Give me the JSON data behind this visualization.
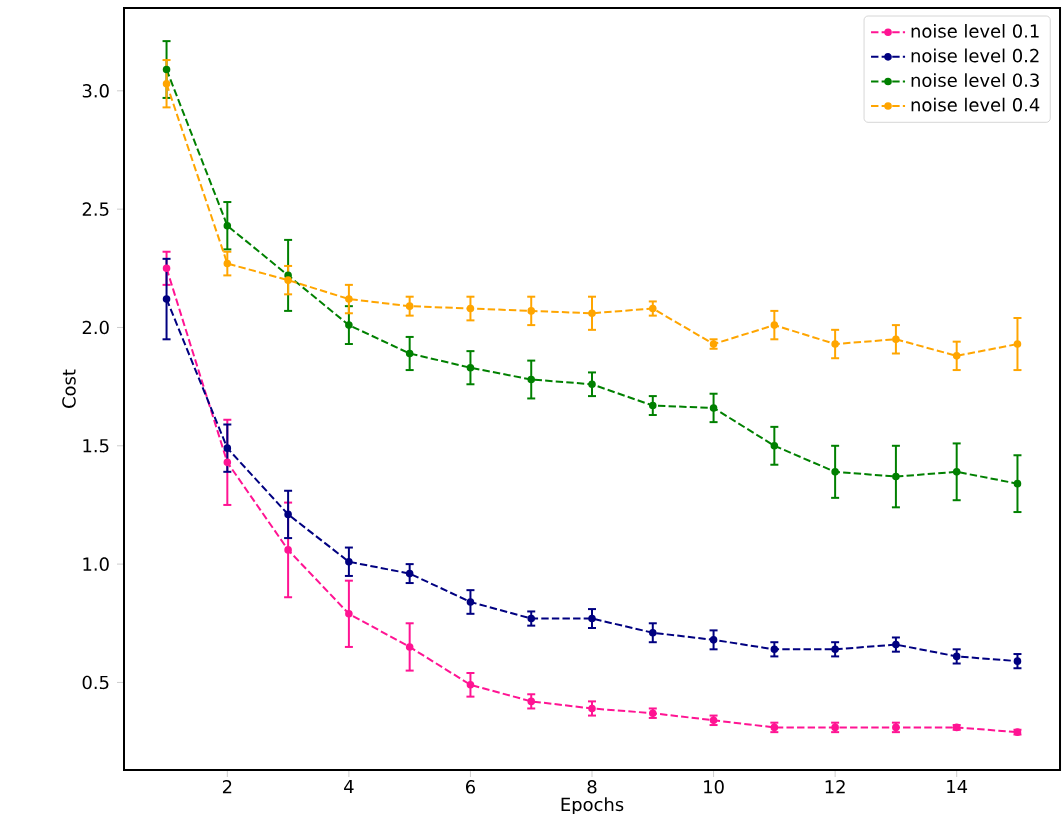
{
  "chart_data": {
    "type": "line",
    "xlabel": "Epochs",
    "ylabel": "Cost",
    "x": [
      1,
      2,
      3,
      4,
      5,
      6,
      7,
      8,
      9,
      10,
      11,
      12,
      13,
      14,
      15
    ],
    "xlim": [
      0.3,
      15.7
    ],
    "ylim": [
      0.13,
      3.35
    ],
    "xticks": [
      2,
      4,
      6,
      8,
      10,
      12,
      14
    ],
    "yticks": [
      {
        "value": 0.5,
        "label": "0.5"
      },
      {
        "value": 1.0,
        "label": "1.0"
      },
      {
        "value": 1.5,
        "label": "1.5"
      },
      {
        "value": 2.0,
        "label": "2.0"
      },
      {
        "value": 2.5,
        "label": "2.5"
      },
      {
        "value": 3.0,
        "label": "3.0"
      }
    ],
    "legend": "top right",
    "marker": "circle",
    "line_style": "dashed",
    "grid": false,
    "series": [
      {
        "name": "noise level 0.1",
        "color": "#ff1493",
        "values": [
          2.25,
          1.43,
          1.06,
          0.79,
          0.65,
          0.49,
          0.42,
          0.39,
          0.37,
          0.34,
          0.31,
          0.31,
          0.31,
          0.31,
          0.29
        ],
        "errors": [
          0.07,
          0.18,
          0.2,
          0.14,
          0.1,
          0.05,
          0.03,
          0.03,
          0.02,
          0.02,
          0.02,
          0.02,
          0.02,
          0.01,
          0.01
        ]
      },
      {
        "name": "noise level 0.2",
        "color": "#000080",
        "values": [
          2.12,
          1.49,
          1.21,
          1.01,
          0.96,
          0.84,
          0.77,
          0.77,
          0.71,
          0.68,
          0.64,
          0.64,
          0.66,
          0.61,
          0.59
        ],
        "errors": [
          0.17,
          0.1,
          0.1,
          0.06,
          0.04,
          0.05,
          0.03,
          0.04,
          0.04,
          0.04,
          0.03,
          0.03,
          0.03,
          0.03,
          0.03
        ]
      },
      {
        "name": "noise level 0.3",
        "color": "#008000",
        "values": [
          3.09,
          2.43,
          2.22,
          2.01,
          1.89,
          1.83,
          1.78,
          1.76,
          1.67,
          1.66,
          1.5,
          1.39,
          1.37,
          1.39,
          1.34
        ],
        "errors": [
          0.12,
          0.1,
          0.15,
          0.08,
          0.07,
          0.07,
          0.08,
          0.05,
          0.04,
          0.06,
          0.08,
          0.11,
          0.13,
          0.12,
          0.12
        ]
      },
      {
        "name": "noise level 0.4",
        "color": "#ffa500",
        "values": [
          3.03,
          2.27,
          2.2,
          2.12,
          2.09,
          2.08,
          2.07,
          2.06,
          2.08,
          1.93,
          2.01,
          1.93,
          1.95,
          1.88,
          1.93
        ],
        "errors": [
          0.1,
          0.05,
          0.06,
          0.06,
          0.04,
          0.05,
          0.06,
          0.07,
          0.03,
          0.02,
          0.06,
          0.06,
          0.06,
          0.06,
          0.11
        ]
      }
    ]
  }
}
